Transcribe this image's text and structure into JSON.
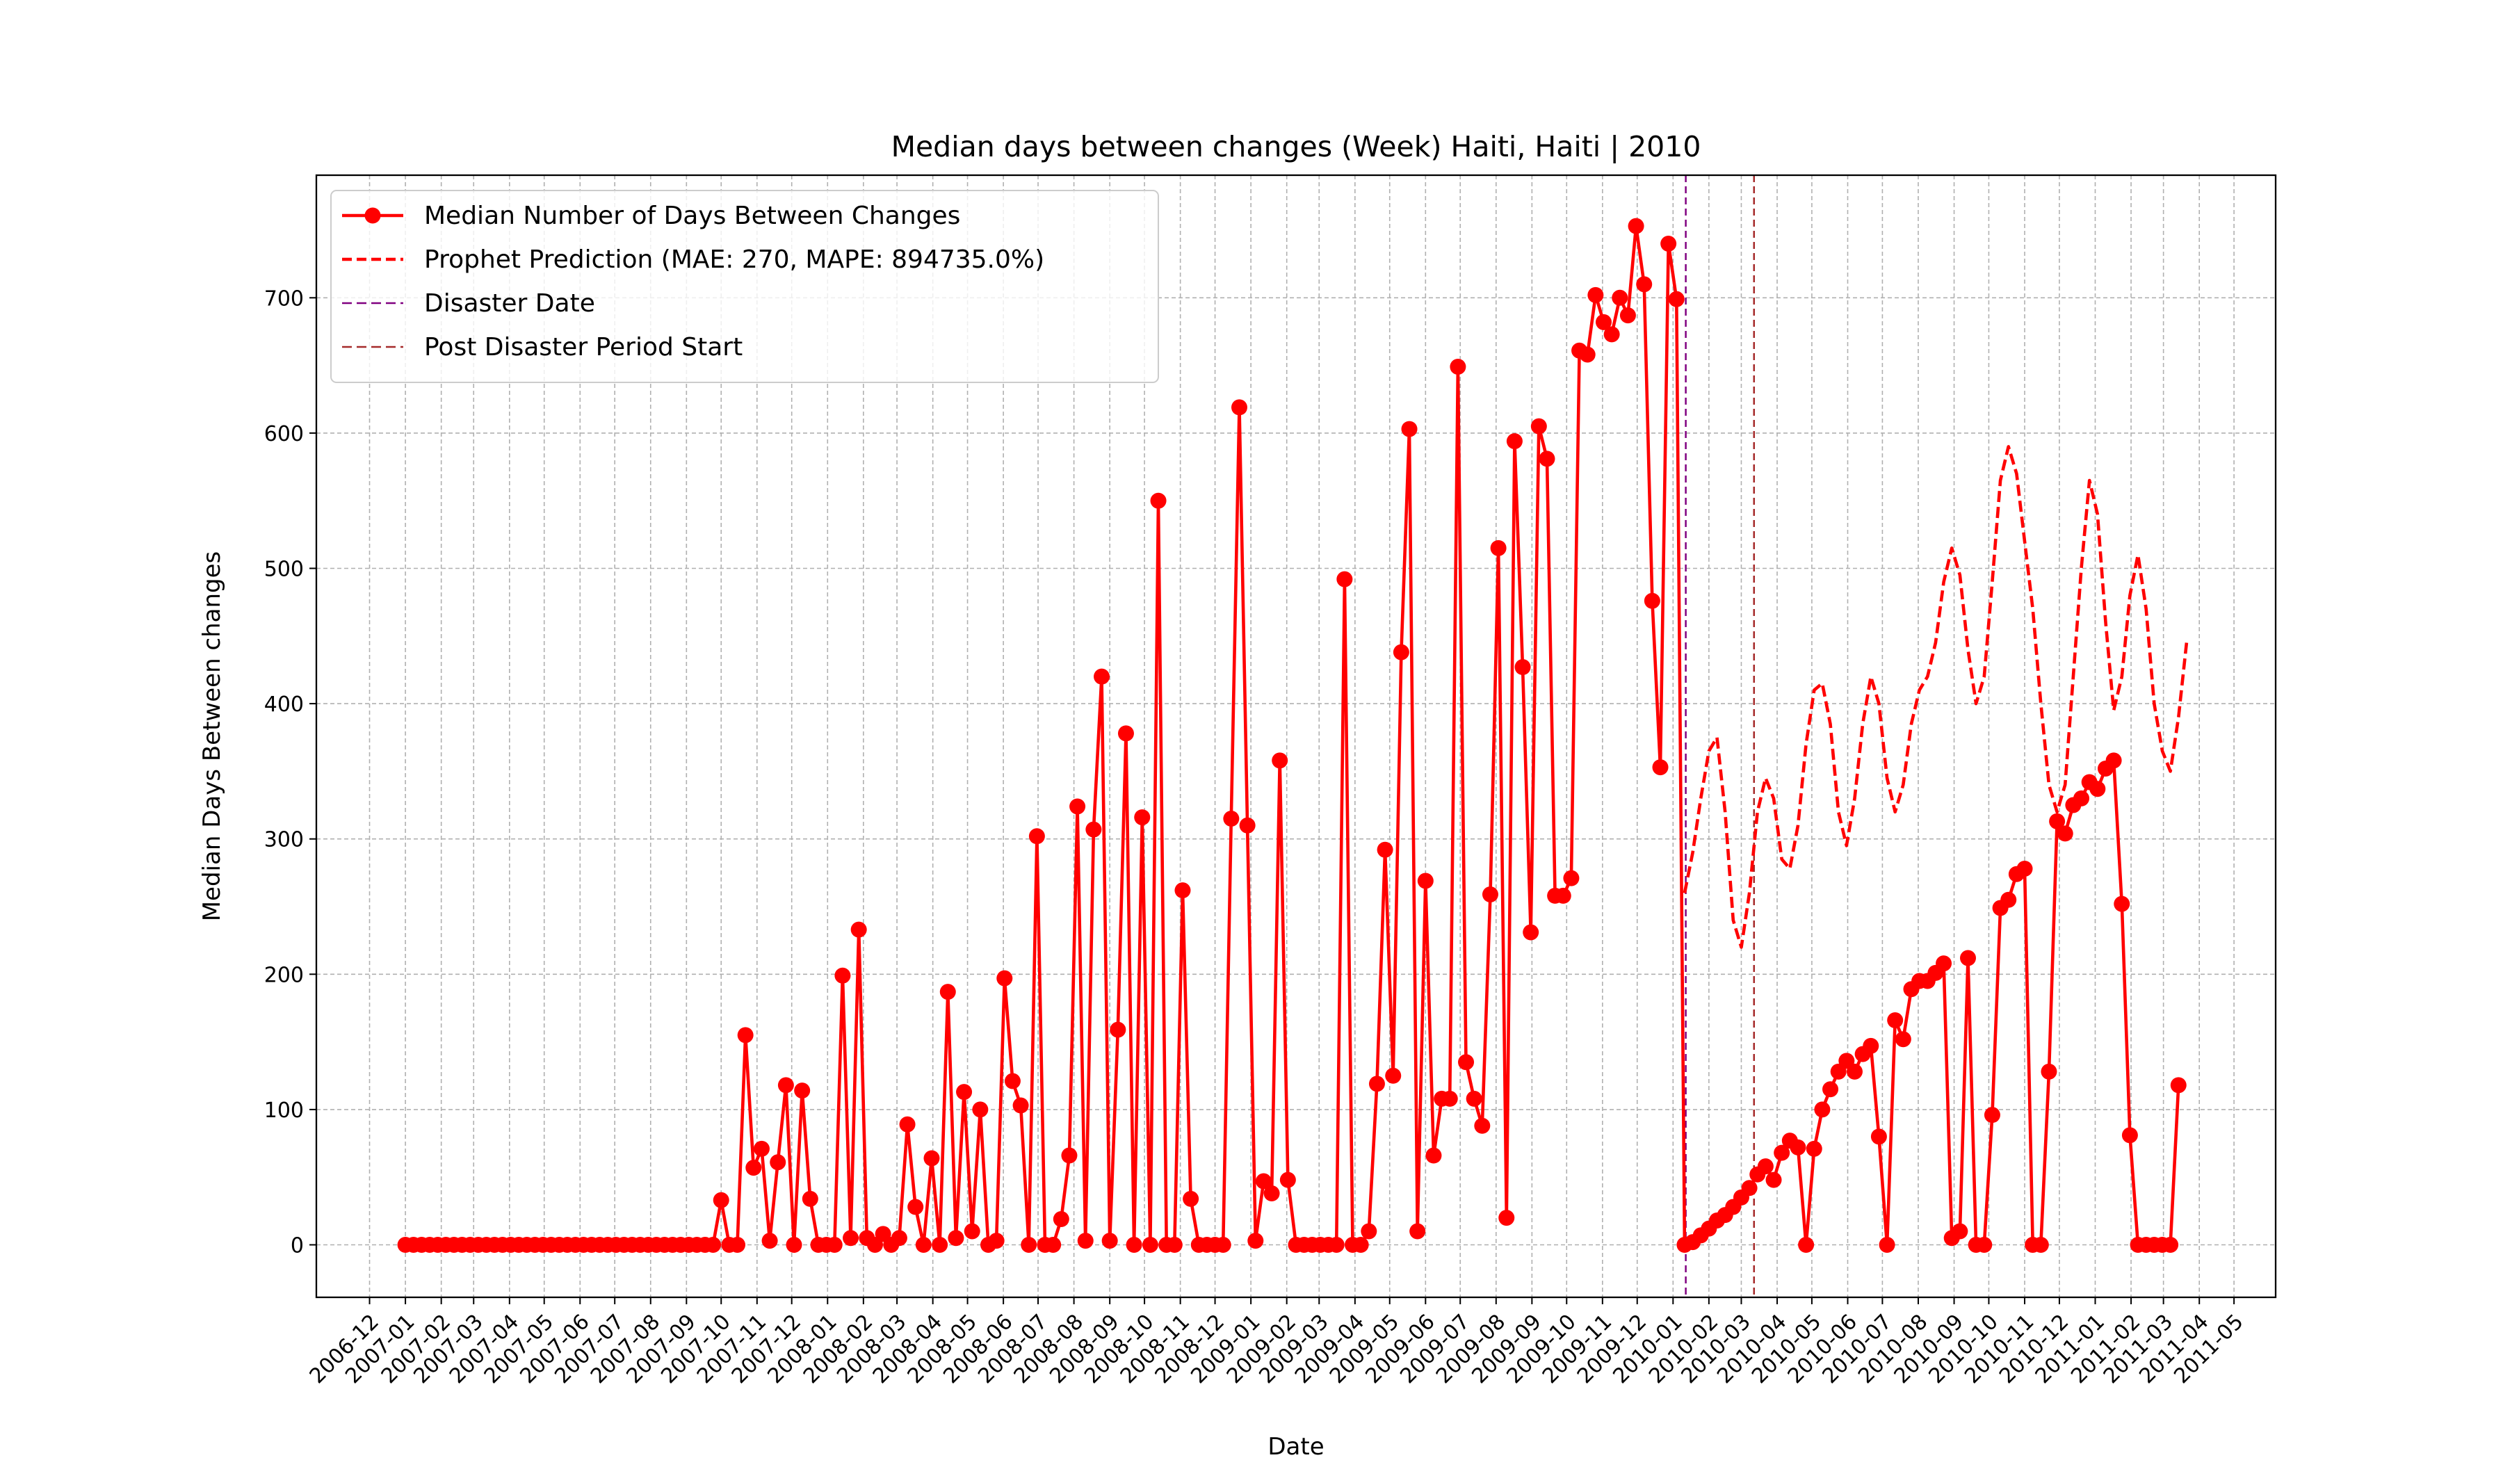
{
  "chart_data": {
    "type": "line",
    "title": "Median days between changes (Week) Haiti, Haiti | 2010",
    "xlabel": "Date",
    "ylabel": "Median Days Between changes",
    "xlim": [
      "2006-10-16",
      "2011-06-06"
    ],
    "xticks": [
      "2006-12",
      "2007-01",
      "2007-02",
      "2007-03",
      "2007-04",
      "2007-05",
      "2007-06",
      "2007-07",
      "2007-08",
      "2007-09",
      "2007-10",
      "2007-11",
      "2007-12",
      "2008-01",
      "2008-02",
      "2008-03",
      "2008-04",
      "2008-05",
      "2008-06",
      "2008-07",
      "2008-08",
      "2008-09",
      "2008-10",
      "2008-11",
      "2008-12",
      "2009-01",
      "2009-02",
      "2009-03",
      "2009-04",
      "2009-05",
      "2009-06",
      "2009-07",
      "2009-08",
      "2009-09",
      "2009-10",
      "2009-11",
      "2009-12",
      "2010-01",
      "2010-02",
      "2010-03",
      "2010-04",
      "2010-05",
      "2010-06",
      "2010-07",
      "2010-08",
      "2010-09",
      "2010-10",
      "2010-11",
      "2010-12",
      "2011-01",
      "2011-02",
      "2011-03",
      "2011-04",
      "2011-05"
    ],
    "ylim": [
      -38.8,
      790.6
    ],
    "yticks": [
      0,
      100,
      200,
      300,
      400,
      500,
      600,
      700
    ],
    "grid": true,
    "legend": "upper left",
    "series": [
      {
        "name": "Median Number of Days Between Changes",
        "color": "#ff0000",
        "marker": "circle",
        "dash": false,
        "x": [
          "2007-01-01",
          "2007-01-08",
          "2007-01-15",
          "2007-01-22",
          "2007-01-29",
          "2007-02-05",
          "2007-02-12",
          "2007-02-19",
          "2007-02-26",
          "2007-03-05",
          "2007-03-12",
          "2007-03-19",
          "2007-03-26",
          "2007-04-02",
          "2007-04-09",
          "2007-04-16",
          "2007-04-23",
          "2007-04-30",
          "2007-05-07",
          "2007-05-14",
          "2007-05-21",
          "2007-05-28",
          "2007-06-04",
          "2007-06-11",
          "2007-06-18",
          "2007-06-25",
          "2007-07-02",
          "2007-07-09",
          "2007-07-16",
          "2007-07-23",
          "2007-07-30",
          "2007-08-06",
          "2007-08-13",
          "2007-08-20",
          "2007-08-27",
          "2007-09-03",
          "2007-09-10",
          "2007-09-17",
          "2007-09-24",
          "2007-10-01",
          "2007-10-08",
          "2007-10-15",
          "2007-10-22",
          "2007-10-29",
          "2007-11-05",
          "2007-11-12",
          "2007-11-19",
          "2007-11-26",
          "2007-12-03",
          "2007-12-10",
          "2007-12-17",
          "2007-12-24",
          "2007-12-31",
          "2008-01-07",
          "2008-01-14",
          "2008-01-21",
          "2008-01-28",
          "2008-02-04",
          "2008-02-11",
          "2008-02-18",
          "2008-02-25",
          "2008-03-03",
          "2008-03-10",
          "2008-03-17",
          "2008-03-24",
          "2008-03-31",
          "2008-04-07",
          "2008-04-14",
          "2008-04-21",
          "2008-04-28",
          "2008-05-05",
          "2008-05-12",
          "2008-05-19",
          "2008-05-26",
          "2008-06-02",
          "2008-06-09",
          "2008-06-16",
          "2008-06-23",
          "2008-06-30",
          "2008-07-07",
          "2008-07-14",
          "2008-07-21",
          "2008-07-28",
          "2008-08-04",
          "2008-08-11",
          "2008-08-18",
          "2008-08-25",
          "2008-09-01",
          "2008-09-08",
          "2008-09-15",
          "2008-09-22",
          "2008-09-29",
          "2008-10-06",
          "2008-10-13",
          "2008-10-20",
          "2008-10-27",
          "2008-11-03",
          "2008-11-10",
          "2008-11-17",
          "2008-11-24",
          "2008-12-01",
          "2008-12-08",
          "2008-12-15",
          "2008-12-22",
          "2008-12-29",
          "2009-01-05",
          "2009-01-12",
          "2009-01-19",
          "2009-01-26",
          "2009-02-02",
          "2009-02-09",
          "2009-02-16",
          "2009-02-23",
          "2009-03-02",
          "2009-03-09",
          "2009-03-16",
          "2009-03-23",
          "2009-03-30",
          "2009-04-06",
          "2009-04-13",
          "2009-04-20",
          "2009-04-27",
          "2009-05-04",
          "2009-05-11",
          "2009-05-18",
          "2009-05-25",
          "2009-06-01",
          "2009-06-08",
          "2009-06-15",
          "2009-06-22",
          "2009-06-29",
          "2009-07-06",
          "2009-07-13",
          "2009-07-20",
          "2009-07-27",
          "2009-08-03",
          "2009-08-10",
          "2009-08-17",
          "2009-08-24",
          "2009-08-31",
          "2009-09-07",
          "2009-09-14",
          "2009-09-21",
          "2009-09-28",
          "2009-10-05",
          "2009-10-12",
          "2009-10-19",
          "2009-10-26",
          "2009-11-02",
          "2009-11-09",
          "2009-11-16",
          "2009-11-23",
          "2009-11-30",
          "2009-12-07",
          "2009-12-14",
          "2009-12-21",
          "2009-12-28",
          "2010-01-04",
          "2010-01-11",
          "2010-01-18",
          "2010-01-25",
          "2010-02-01",
          "2010-02-08",
          "2010-02-15",
          "2010-02-22",
          "2010-03-01",
          "2010-03-08",
          "2010-03-15",
          "2010-03-22",
          "2010-03-29",
          "2010-04-05",
          "2010-04-12",
          "2010-04-19",
          "2010-04-26",
          "2010-05-03",
          "2010-05-10",
          "2010-05-17",
          "2010-05-24",
          "2010-05-31",
          "2010-06-07",
          "2010-06-14",
          "2010-06-21",
          "2010-06-28",
          "2010-07-05",
          "2010-07-12",
          "2010-07-19",
          "2010-07-26",
          "2010-08-02",
          "2010-08-09",
          "2010-08-16",
          "2010-08-23",
          "2010-08-30",
          "2010-09-06",
          "2010-09-13",
          "2010-09-20",
          "2010-09-27",
          "2010-10-04",
          "2010-10-11",
          "2010-10-18",
          "2010-10-25",
          "2010-11-01",
          "2010-11-08",
          "2010-11-15",
          "2010-11-22",
          "2010-11-29",
          "2010-12-06",
          "2010-12-13",
          "2010-12-20",
          "2010-12-27",
          "2011-01-03",
          "2011-01-10",
          "2011-01-17",
          "2011-01-24",
          "2011-01-31",
          "2011-02-07",
          "2011-02-14",
          "2011-02-21",
          "2011-02-28",
          "2011-03-07",
          "2011-03-14"
        ],
        "values": [
          0,
          0,
          0,
          0,
          0,
          0,
          0,
          0,
          0,
          0,
          0,
          0,
          0,
          0,
          0,
          0,
          0,
          0,
          0,
          0,
          0,
          0,
          0,
          0,
          0,
          0,
          0,
          0,
          0,
          0,
          0,
          0,
          0,
          0,
          0,
          0,
          0,
          0,
          0,
          33,
          0,
          0,
          155,
          57,
          71,
          3,
          61,
          118,
          0,
          114,
          34,
          0,
          0,
          0,
          199,
          5,
          233,
          5,
          0,
          8,
          0,
          5,
          89,
          28,
          0,
          64,
          0,
          187,
          5,
          113,
          10,
          100,
          0,
          3,
          197,
          121,
          103,
          0,
          302,
          0,
          0,
          19,
          66,
          324,
          3,
          307,
          420,
          3,
          159,
          378,
          0,
          316,
          0,
          550,
          0,
          0,
          262,
          34,
          0,
          0,
          0,
          0,
          315,
          619,
          310,
          3,
          47,
          38,
          358,
          48,
          0,
          0,
          0,
          0,
          0,
          0,
          492,
          0,
          0,
          10,
          119,
          292,
          125,
          438,
          603,
          10,
          269,
          66,
          108,
          108,
          649,
          135,
          108,
          88,
          259,
          515,
          20,
          594,
          427,
          231,
          605,
          581,
          258,
          258,
          271,
          661,
          658,
          702,
          682,
          673,
          700,
          687,
          753,
          710,
          476,
          353,
          740,
          699,
          0,
          2,
          7,
          12,
          18,
          22,
          28,
          35,
          42,
          52,
          58,
          48,
          68,
          77,
          72,
          0,
          71,
          100,
          115,
          128,
          136,
          128,
          141,
          147,
          80,
          0,
          166,
          152,
          189,
          195,
          195,
          201,
          208,
          5,
          10,
          212,
          0,
          0,
          96,
          249,
          255,
          274,
          278,
          0,
          0,
          128,
          313,
          304,
          325,
          330,
          342,
          337,
          352,
          358,
          252,
          81,
          0,
          0,
          0,
          0,
          0,
          118
        ]
      },
      {
        "name": "Prophet Prediction (MAE: 270, MAPE: 894735.0%)",
        "color": "#ff0000",
        "marker": "none",
        "dash": true,
        "x": [
          "2010-01-11",
          "2010-01-18",
          "2010-01-25",
          "2010-02-01",
          "2010-02-08",
          "2010-02-15",
          "2010-02-22",
          "2010-03-01",
          "2010-03-08",
          "2010-03-15",
          "2010-03-22",
          "2010-03-29",
          "2010-04-05",
          "2010-04-12",
          "2010-04-19",
          "2010-04-26",
          "2010-05-03",
          "2010-05-10",
          "2010-05-17",
          "2010-05-24",
          "2010-05-31",
          "2010-06-07",
          "2010-06-14",
          "2010-06-21",
          "2010-06-28",
          "2010-07-05",
          "2010-07-12",
          "2010-07-19",
          "2010-07-26",
          "2010-08-02",
          "2010-08-09",
          "2010-08-16",
          "2010-08-23",
          "2010-08-30",
          "2010-09-06",
          "2010-09-13",
          "2010-09-20",
          "2010-09-27",
          "2010-10-04",
          "2010-10-11",
          "2010-10-18",
          "2010-10-25",
          "2010-11-01",
          "2010-11-08",
          "2010-11-15",
          "2010-11-22",
          "2010-11-29",
          "2010-12-06",
          "2010-12-13",
          "2010-12-20",
          "2010-12-27",
          "2011-01-03",
          "2011-01-10",
          "2011-01-17",
          "2011-01-24",
          "2011-01-31",
          "2011-02-07",
          "2011-02-14",
          "2011-02-21",
          "2011-02-28",
          "2011-03-07",
          "2011-03-14",
          "2011-03-21"
        ],
        "values": [
          260,
          290,
          330,
          365,
          375,
          320,
          240,
          220,
          260,
          320,
          345,
          330,
          285,
          278,
          310,
          370,
          410,
          415,
          385,
          320,
          295,
          330,
          385,
          420,
          400,
          345,
          320,
          340,
          385,
          410,
          420,
          445,
          490,
          515,
          495,
          440,
          400,
          420,
          490,
          565,
          590,
          570,
          520,
          470,
          400,
          340,
          320,
          340,
          420,
          500,
          565,
          540,
          460,
          395,
          420,
          480,
          510,
          470,
          400,
          365,
          350,
          390,
          445
        ]
      }
    ],
    "vlines": [
      {
        "name": "Disaster Date",
        "x": "2010-01-12",
        "color": "#800080"
      },
      {
        "name": "Post Disaster Period Start",
        "x": "2010-03-12",
        "color": "#a52a2a"
      }
    ]
  }
}
